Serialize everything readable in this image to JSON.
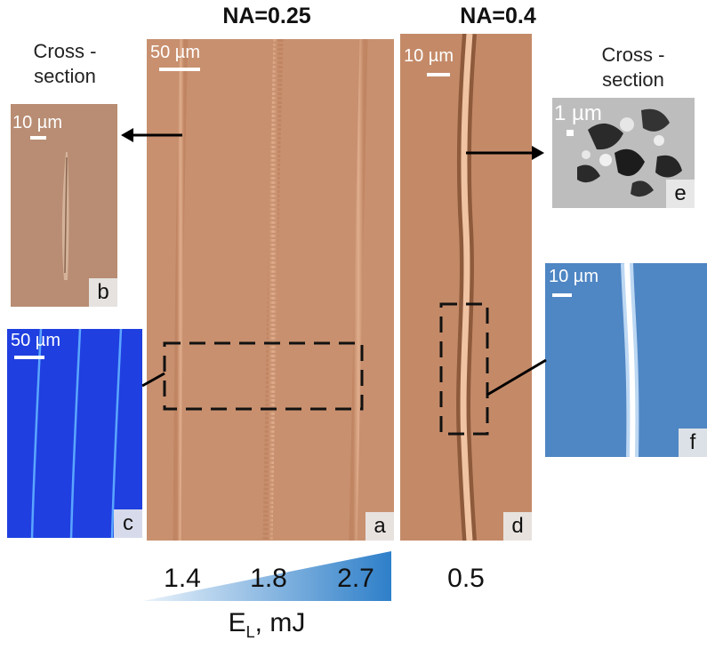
{
  "titles": {
    "left": "NA=0.25",
    "right": "NA=0.4"
  },
  "captions": {
    "cross_left": "Cross -\nsection",
    "cross_right": "Cross -\nsection"
  },
  "panels": {
    "a": {
      "letter": "a",
      "scale": "50 µm",
      "color": "#c8906f"
    },
    "b": {
      "letter": "b",
      "scale": "10 µm",
      "color": "#b88d73"
    },
    "c": {
      "letter": "c",
      "scale": "50 µm",
      "color": "#1f3fe0"
    },
    "d": {
      "letter": "d",
      "scale": "10 µm",
      "color": "#c48a68"
    },
    "e": {
      "letter": "e",
      "scale": "1 µm",
      "color": "#bdbdbd"
    },
    "f": {
      "letter": "f",
      "scale": "10 µm",
      "color": "#4f86c4"
    }
  },
  "energies": {
    "e1": "1.4",
    "e2": "1.8",
    "e3": "2.7",
    "e4": "0.5"
  },
  "axis": {
    "label_main": "E",
    "label_sub": "L",
    "label_unit": ", mJ"
  },
  "colors": {
    "wedge_light": "#eaf3fb",
    "wedge_dark": "#2e7fc9",
    "arrow": "#000000"
  }
}
